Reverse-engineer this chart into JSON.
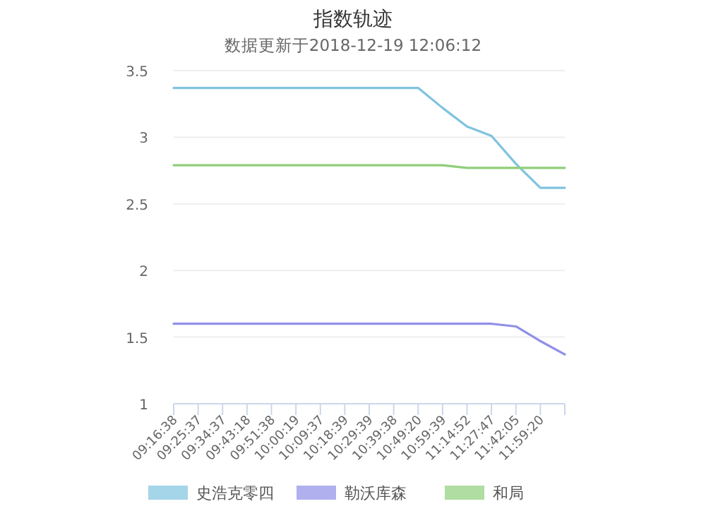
{
  "chart_data": {
    "type": "line",
    "title": "指数轨迹",
    "subtitle": "数据更新于2018-12-19 12:06:12",
    "categories": [
      "09:16:38",
      "09:25:37",
      "09:34:37",
      "09:43:18",
      "09:51:38",
      "10:00:19",
      "10:09:37",
      "10:18:39",
      "10:29:39",
      "10:39:38",
      "10:49:20",
      "10:59:39",
      "11:14:52",
      "11:27:47",
      "11:42:05",
      "11:59:20",
      null
    ],
    "series": [
      {
        "name": "史浩克零四",
        "color": "#7fc3e0",
        "values": [
          3.37,
          3.37,
          3.37,
          3.37,
          3.37,
          3.37,
          3.37,
          3.37,
          3.37,
          3.37,
          3.37,
          3.22,
          3.08,
          3.01,
          2.8,
          2.62,
          2.62
        ]
      },
      {
        "name": "勒沃库森",
        "color": "#8f8fe8",
        "values": [
          1.6,
          1.6,
          1.6,
          1.6,
          1.6,
          1.6,
          1.6,
          1.6,
          1.6,
          1.6,
          1.6,
          1.6,
          1.6,
          1.6,
          1.58,
          1.47,
          1.37
        ]
      },
      {
        "name": "和局",
        "color": "#8fce7a",
        "values": [
          2.79,
          2.79,
          2.79,
          2.79,
          2.79,
          2.79,
          2.79,
          2.79,
          2.79,
          2.79,
          2.79,
          2.79,
          2.77,
          2.77,
          2.77,
          2.77,
          2.77
        ]
      }
    ],
    "ylim": [
      1,
      3.5
    ],
    "yticks": [
      1,
      1.5,
      2,
      2.5,
      3,
      3.5
    ],
    "grid": "y",
    "legend": "bottom",
    "marker": "none",
    "line_style": "solid"
  }
}
